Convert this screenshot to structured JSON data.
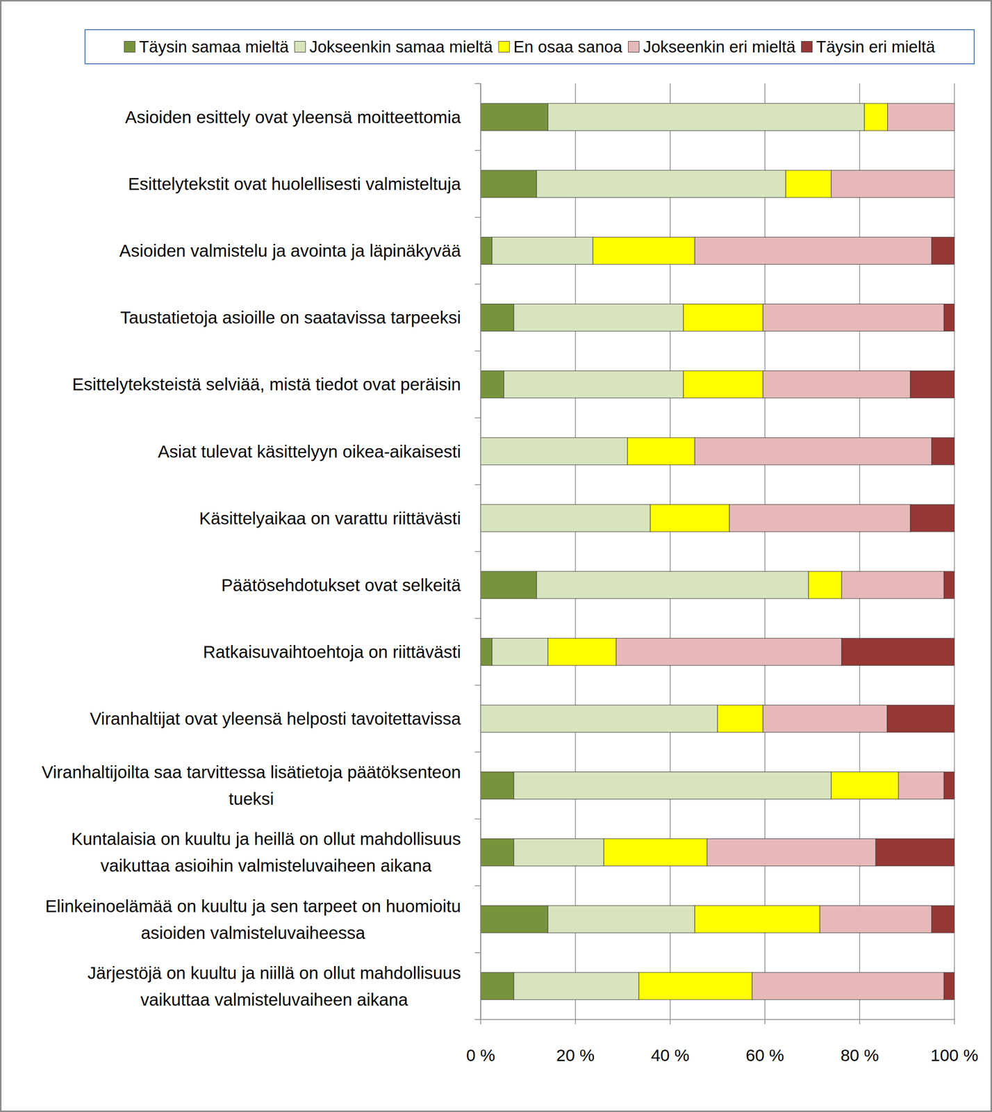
{
  "chart_data": {
    "type": "bar",
    "orientation": "horizontal",
    "stacked": true,
    "grid": true,
    "legend": "top",
    "categories": [
      "Asioiden esittely ovat yleensä moitteettomia",
      "Esittelytekstit ovat huolellisesti valmisteltuja",
      "Asioiden valmistelu ja avointa ja läpinäkyvää",
      "Taustatietoja asioille on saatavissa tarpeeksi",
      "Esittelyteksteistä selviää, mistä tiedot ovat peräisin",
      "Asiat tulevat käsittelyyn oikea-aikaisesti",
      "Käsittelyaikaa on varattu riittävästi",
      "Päätösehdotukset ovat selkeitä",
      "Ratkaisuvaihtoehtoja on riittävästi",
      "Viranhaltijat ovat yleensä helposti tavoitettavissa",
      "Viranhaltijoilta saa tarvittessa lisätietoja päätöksenteon tueksi",
      "Kuntalaisia on kuultu ja heillä on ollut mahdollisuus vaikuttaa asioihin valmisteluvaiheen aikana",
      "Elinkeinoelämää on kuultu ja sen tarpeet on huomioitu asioiden valmisteluvaiheessa",
      "Järjestöjä on kuultu ja niillä on ollut mahdollisuus vaikuttaa valmisteluvaiheen aikana"
    ],
    "series": [
      {
        "name": "Täysin samaa mieltä",
        "color": "#77933c",
        "values": [
          14.2,
          11.8,
          2.4,
          7.0,
          4.9,
          0,
          0,
          11.8,
          2.4,
          0,
          7.0,
          7.0,
          14.2,
          7.0
        ]
      },
      {
        "name": "Jokseenkin samaa mieltä",
        "color": "#d7e4bd",
        "values": [
          66.8,
          52.6,
          21.3,
          35.8,
          37.9,
          31.0,
          35.8,
          57.4,
          11.8,
          50.0,
          67.0,
          19.0,
          31.0,
          26.4
        ]
      },
      {
        "name": "En osaa sanoa",
        "color": "#ffff00",
        "values": [
          4.9,
          9.6,
          21.5,
          16.8,
          16.8,
          14.2,
          16.7,
          7.0,
          14.4,
          9.6,
          14.2,
          21.8,
          26.4,
          23.9
        ]
      },
      {
        "name": "Jokseenkin eri mieltä",
        "color": "#e6b9b8",
        "values": [
          14.1,
          26.0,
          50.0,
          38.2,
          31.1,
          50.0,
          38.2,
          21.6,
          47.6,
          26.2,
          9.6,
          35.6,
          23.6,
          40.5
        ]
      },
      {
        "name": "Täysin eri mieltä",
        "color": "#953735",
        "values": [
          0,
          0,
          4.8,
          2.2,
          9.3,
          4.8,
          9.3,
          2.2,
          23.8,
          14.2,
          2.2,
          16.6,
          4.8,
          2.2
        ]
      }
    ],
    "xlim": [
      0,
      100
    ],
    "xticks": [
      {
        "value": 0,
        "label": "0 %"
      },
      {
        "value": 20,
        "label": "20 %"
      },
      {
        "value": 40,
        "label": "40 %"
      },
      {
        "value": 60,
        "label": "60 %"
      },
      {
        "value": 80,
        "label": "80 %"
      },
      {
        "value": 100,
        "label": "100 %"
      }
    ]
  }
}
